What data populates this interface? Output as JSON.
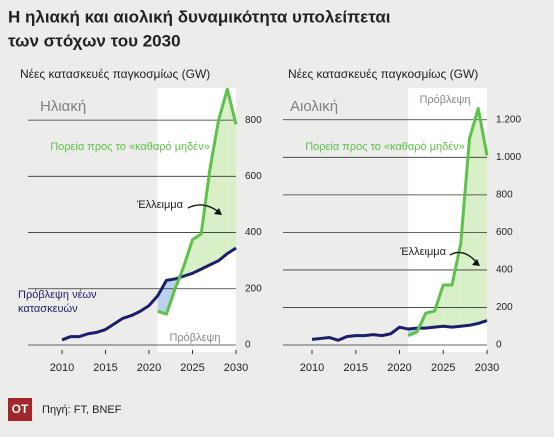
{
  "title_line1": "Η ηλιακή και αιολική δυναμικότητα υπολείπεται",
  "title_line2": "των στόχων του 2030",
  "logo": "ΟΤ",
  "source": "Πηγή: FT, BNEF",
  "chart_data": [
    {
      "type": "line",
      "title": "Ηλιακή",
      "subtitle": "Νέες κατασκευές παγκοσμίως (GW)",
      "x": [
        2010,
        2011,
        2012,
        2013,
        2014,
        2015,
        2016,
        2017,
        2018,
        2019,
        2020,
        2021,
        2022,
        2023,
        2024,
        2025,
        2026,
        2027,
        2028,
        2029,
        2030
      ],
      "xlim": [
        2010,
        2030
      ],
      "xticks": [
        2010,
        2015,
        2020,
        2025,
        2030
      ],
      "ylim": [
        0,
        900
      ],
      "yticks": [
        0,
        200,
        400,
        600,
        800
      ],
      "grid": true,
      "forecast_range": [
        2021,
        2030
      ],
      "forecast_label": "Πρόβλεψη",
      "gap_label": "Έλλειμμα",
      "series": [
        {
          "name": "Πρόβλεψη νέων κατασκευών",
          "color": "#1b1f6b",
          "values": [
            18,
            30,
            30,
            40,
            45,
            55,
            75,
            95,
            105,
            120,
            140,
            175,
            230,
            235,
            245,
            255,
            270,
            285,
            300,
            325,
            345
          ]
        },
        {
          "name": "Πορεία προς το «καθαρό μηδέν»",
          "color": "#5cc24a",
          "values": [
            null,
            null,
            null,
            null,
            null,
            null,
            null,
            null,
            null,
            null,
            null,
            120,
            110,
            200,
            280,
            375,
            395,
            625,
            800,
            910,
            785
          ]
        }
      ]
    },
    {
      "type": "line",
      "title": "Αιολική",
      "subtitle": "Νέες κατασκευές παγκοσμίως (GW)",
      "x": [
        2010,
        2011,
        2012,
        2013,
        2014,
        2015,
        2016,
        2017,
        2018,
        2019,
        2020,
        2021,
        2022,
        2023,
        2024,
        2025,
        2026,
        2027,
        2028,
        2029,
        2030
      ],
      "xlim": [
        2010,
        2030
      ],
      "xticks": [
        2010,
        2015,
        2020,
        2025,
        2030
      ],
      "ylim": [
        0,
        1300
      ],
      "yticks": [
        0,
        200,
        400,
        600,
        800,
        {
          "value": 1000,
          "label": "1.000"
        },
        {
          "value": 1200,
          "label": "1.200"
        }
      ],
      "grid": true,
      "forecast_range": [
        2021,
        2030
      ],
      "forecast_label": "Πρόβλεψη",
      "gap_label": "Έλλειμμα",
      "series": [
        {
          "color": "#1b1f6b",
          "values": [
            30,
            35,
            40,
            25,
            45,
            50,
            50,
            55,
            50,
            60,
            95,
            85,
            90,
            90,
            95,
            100,
            95,
            100,
            105,
            115,
            130
          ]
        },
        {
          "name": "Πορεία προς το «καθαρό μηδέν»",
          "color": "#5cc24a",
          "values": [
            null,
            null,
            null,
            null,
            null,
            null,
            null,
            null,
            null,
            null,
            null,
            50,
            70,
            170,
            180,
            320,
            320,
            540,
            1100,
            1260,
            1010
          ]
        }
      ]
    }
  ]
}
